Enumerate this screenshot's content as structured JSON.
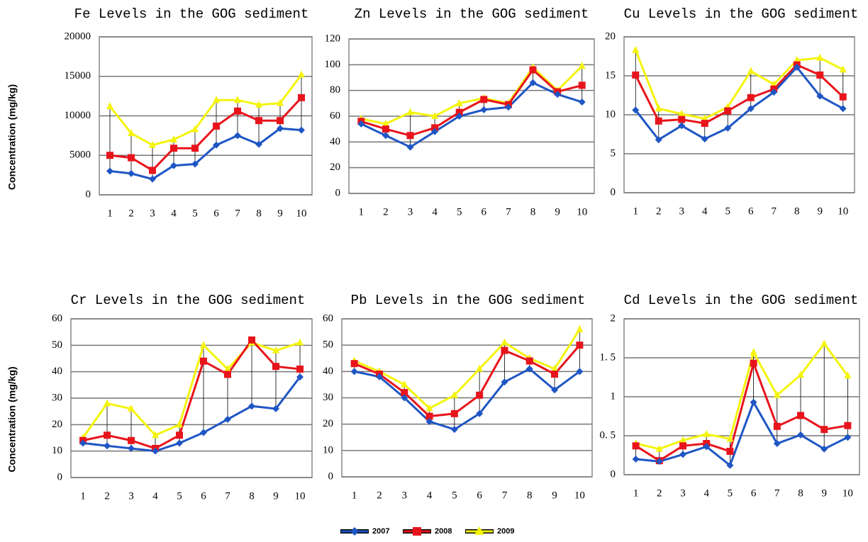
{
  "chart_data": [
    {
      "type": "line",
      "title": "Fe Levels in the GOG sediment",
      "ylabel": "Concentration  (mg/kg)",
      "categories": [
        "1",
        "2",
        "3",
        "4",
        "5",
        "6",
        "7",
        "8",
        "9",
        "10"
      ],
      "series": [
        {
          "name": "2007",
          "color": "#1f56c4",
          "marker": "diamond",
          "values": [
            3000,
            2700,
            2000,
            3700,
            3900,
            6300,
            7500,
            6400,
            8400,
            8200
          ]
        },
        {
          "name": "2008",
          "color": "#e8141b",
          "marker": "square",
          "values": [
            5000,
            4700,
            3100,
            5900,
            5900,
            8700,
            10600,
            9400,
            9400,
            12300
          ]
        },
        {
          "name": "2009",
          "color": "#f4f40c",
          "marker": "triangle",
          "values": [
            11200,
            7800,
            6300,
            7000,
            8300,
            12000,
            12000,
            11400,
            11600,
            15200
          ]
        }
      ],
      "ylim": [
        0,
        20000
      ],
      "yticks": [
        0,
        5000,
        10000,
        15000,
        20000
      ],
      "grid": true,
      "drop_lines": true
    },
    {
      "type": "line",
      "title": "Zn Levels in the GOG sediment",
      "categories": [
        "1",
        "2",
        "3",
        "4",
        "5",
        "6",
        "7",
        "8",
        "9",
        "10"
      ],
      "series": [
        {
          "color": "#1f56c4",
          "marker": "diamond",
          "values": [
            54,
            45,
            36,
            48,
            60,
            65,
            67,
            86,
            77,
            71
          ]
        },
        {
          "color": "#e8141b",
          "marker": "square",
          "values": [
            56,
            50,
            45,
            51,
            63,
            73,
            69,
            96,
            79,
            84
          ]
        },
        {
          "color": "#f4f40c",
          "marker": "triangle",
          "values": [
            58,
            54,
            63,
            60,
            70,
            74,
            70,
            98,
            80,
            99
          ]
        }
      ],
      "ylim": [
        0,
        120
      ],
      "yticks": [
        0,
        20,
        40,
        60,
        80,
        100,
        120
      ],
      "grid": true,
      "drop_lines": true
    },
    {
      "type": "line",
      "title": "Cu Levels in the GOG sediment",
      "categories": [
        "1",
        "2",
        "3",
        "4",
        "5",
        "6",
        "7",
        "8",
        "9",
        "10"
      ],
      "series": [
        {
          "color": "#1f56c4",
          "marker": "diamond",
          "values": [
            10.6,
            6.8,
            8.6,
            6.9,
            8.3,
            10.8,
            12.9,
            16.1,
            12.4,
            10.8
          ]
        },
        {
          "color": "#e8141b",
          "marker": "square",
          "values": [
            15.1,
            9.2,
            9.4,
            8.9,
            10.5,
            12.2,
            13.3,
            16.4,
            15.1,
            12.3
          ]
        },
        {
          "color": "#f4f40c",
          "marker": "triangle",
          "values": [
            18.3,
            10.8,
            10.1,
            9.5,
            11.0,
            15.6,
            13.9,
            17.0,
            17.3,
            15.8
          ]
        }
      ],
      "ylim": [
        0,
        20
      ],
      "yticks": [
        0,
        5,
        10,
        15,
        20
      ],
      "grid": true,
      "drop_lines": true
    },
    {
      "type": "line",
      "title": "Cr Levels in the GOG sediment",
      "ylabel": "Concentration  (mg/kg)",
      "categories": [
        "1",
        "2",
        "3",
        "4",
        "5",
        "6",
        "7",
        "8",
        "9",
        "10"
      ],
      "series": [
        {
          "color": "#1f56c4",
          "marker": "diamond",
          "values": [
            13,
            12,
            11,
            10,
            13,
            17,
            22,
            27,
            26,
            38
          ]
        },
        {
          "color": "#e8141b",
          "marker": "square",
          "values": [
            14,
            16,
            14,
            11,
            16,
            44,
            39,
            52,
            42,
            41
          ]
        },
        {
          "color": "#f4f40c",
          "marker": "triangle",
          "values": [
            15,
            28,
            26,
            16,
            20,
            50,
            41,
            51,
            48,
            51
          ]
        }
      ],
      "ylim": [
        0,
        60
      ],
      "yticks": [
        0,
        10,
        20,
        30,
        40,
        50,
        60
      ],
      "grid": true,
      "drop_lines": true
    },
    {
      "type": "line",
      "title": "Pb Levels in the GOG sediment",
      "categories": [
        "1",
        "2",
        "3",
        "4",
        "5",
        "6",
        "7",
        "8",
        "9",
        "10"
      ],
      "series": [
        {
          "color": "#1f56c4",
          "marker": "diamond",
          "values": [
            40,
            38,
            30,
            21,
            18,
            24,
            36,
            41,
            33,
            40
          ]
        },
        {
          "color": "#e8141b",
          "marker": "square",
          "values": [
            43,
            39,
            32,
            23,
            24,
            31,
            48,
            44,
            39,
            50
          ]
        },
        {
          "color": "#f4f40c",
          "marker": "triangle",
          "values": [
            44,
            40,
            35,
            26,
            31,
            41,
            51,
            45,
            41,
            56
          ]
        }
      ],
      "ylim": [
        0,
        60
      ],
      "yticks": [
        0,
        10,
        20,
        30,
        40,
        50,
        60
      ],
      "grid": true,
      "drop_lines": true
    },
    {
      "type": "line",
      "title": "Cd Levels in the GOG sediment",
      "categories": [
        "1",
        "2",
        "3",
        "4",
        "5",
        "6",
        "7",
        "8",
        "9",
        "10"
      ],
      "series": [
        {
          "color": "#1f56c4",
          "marker": "diamond",
          "values": [
            0.2,
            0.17,
            0.26,
            0.36,
            0.12,
            0.93,
            0.4,
            0.51,
            0.33,
            0.48
          ]
        },
        {
          "color": "#e8141b",
          "marker": "square",
          "values": [
            0.37,
            0.18,
            0.37,
            0.4,
            0.3,
            1.43,
            0.62,
            0.76,
            0.58,
            0.63
          ]
        },
        {
          "color": "#f4f40c",
          "marker": "triangle",
          "values": [
            0.4,
            0.33,
            0.44,
            0.52,
            0.46,
            1.57,
            1.02,
            1.28,
            1.68,
            1.27
          ]
        }
      ],
      "ylim": [
        0,
        2
      ],
      "yticks": [
        0,
        {
          "value": 0.5,
          "label": "0. 5"
        },
        1,
        {
          "value": 1.5,
          "label": "1. 5"
        },
        2
      ],
      "grid": true,
      "drop_lines": true
    }
  ]
}
